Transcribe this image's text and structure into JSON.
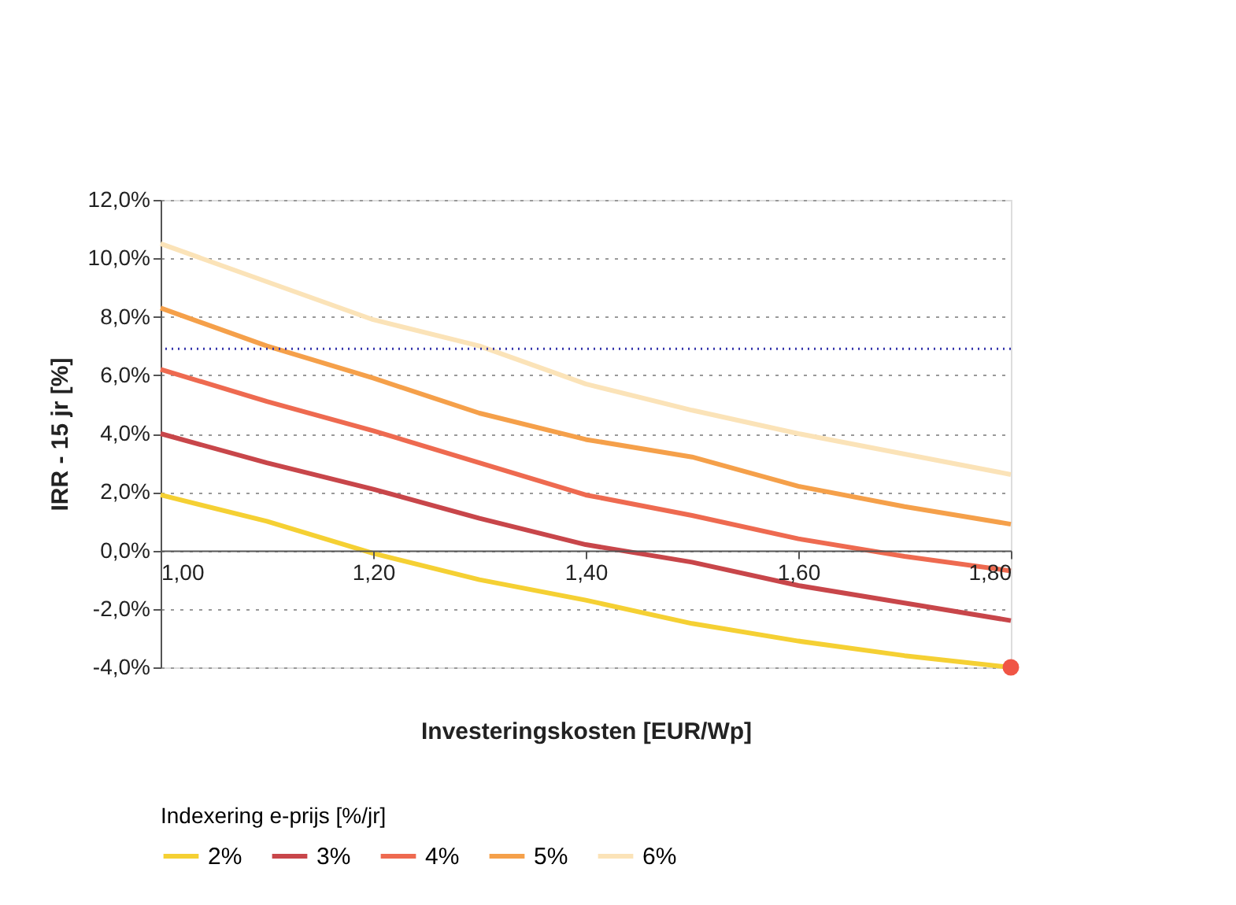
{
  "chart_data": {
    "type": "line",
    "xlabel": "Investeringskosten [EUR/Wp]",
    "ylabel": "IRR - 15 jr [%]",
    "legend_title": "Indexering e-prijs [%/jr]",
    "legend": "bottom",
    "grid": "y",
    "marker": "none",
    "line_style": "solid",
    "x": [
      1.0,
      1.1,
      1.2,
      1.3,
      1.4,
      1.5,
      1.6,
      1.7,
      1.8
    ],
    "xlim": [
      1.0,
      1.8
    ],
    "xticks": [
      {
        "value": 1.0,
        "label": "1,00"
      },
      {
        "value": 1.2,
        "label": "1,20"
      },
      {
        "value": 1.4,
        "label": "1,40"
      },
      {
        "value": 1.6,
        "label": "1,60"
      },
      {
        "value": 1.8,
        "label": "1,80"
      }
    ],
    "ylim": [
      -4,
      12
    ],
    "yticks": [
      {
        "value": -4,
        "label": "-4,0%"
      },
      {
        "value": -2,
        "label": "-2,0%"
      },
      {
        "value": 0,
        "label": "0,0%"
      },
      {
        "value": 2,
        "label": "2,0%"
      },
      {
        "value": 4,
        "label": "4,0%"
      },
      {
        "value": 6,
        "label": "6,0%"
      },
      {
        "value": 8,
        "label": "8,0%"
      },
      {
        "value": 10,
        "label": "10,0%"
      },
      {
        "value": 12,
        "label": "12,0%"
      }
    ],
    "series": [
      {
        "name": "2%",
        "color": "#f5d033",
        "values": [
          1.9,
          1.0,
          -0.1,
          -1.0,
          -1.7,
          -2.5,
          -3.1,
          -3.6,
          -4.0
        ]
      },
      {
        "name": "3%",
        "color": "#c8464a",
        "values": [
          4.0,
          3.0,
          2.1,
          1.1,
          0.2,
          -0.4,
          -1.2,
          -1.8,
          -2.4
        ]
      },
      {
        "name": "4%",
        "color": "#ee6a50",
        "values": [
          6.2,
          5.1,
          4.1,
          3.0,
          1.9,
          1.2,
          0.4,
          -0.2,
          -0.7
        ]
      },
      {
        "name": "5%",
        "color": "#f5a04a",
        "values": [
          8.3,
          7.0,
          5.9,
          4.7,
          3.8,
          3.2,
          2.2,
          1.5,
          0.9
        ]
      },
      {
        "name": "6%",
        "color": "#fbe3b8",
        "values": [
          10.5,
          9.2,
          7.9,
          7.0,
          5.7,
          4.8,
          4.0,
          3.3,
          2.6
        ]
      },
      {
        "type": "scatter",
        "color": "#f05545",
        "marker": "circle",
        "x": [
          1.8
        ],
        "values": [
          -4.0
        ]
      }
    ],
    "ref_lines": [
      {
        "axis": "y",
        "value": 6.9,
        "color": "#3333aa",
        "line_style": "dotted"
      }
    ]
  }
}
